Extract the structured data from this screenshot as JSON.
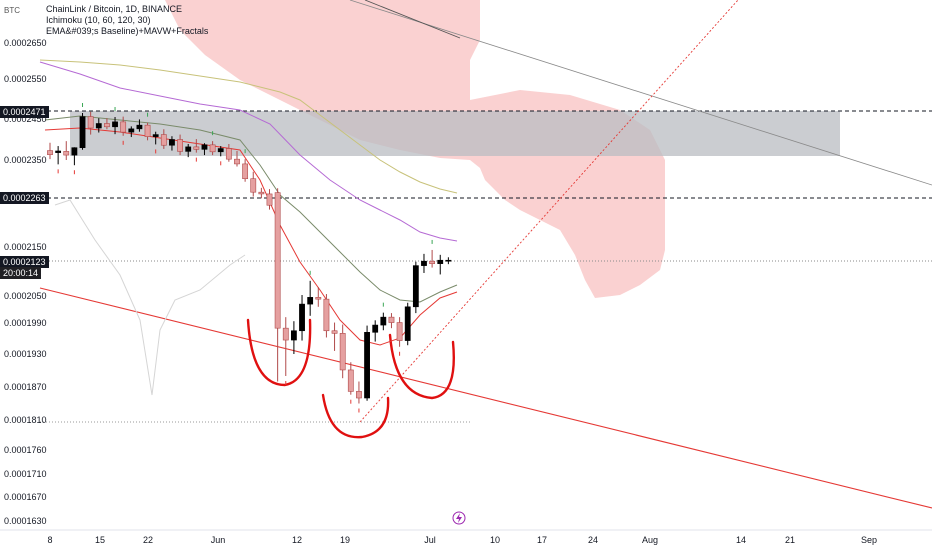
{
  "header": {
    "symbol_title": "ChainLink / Bitcoin, 1D, BINANCE",
    "indicator_1": "Ichimoku (10, 60, 120, 30)",
    "indicator_2": "EMA&#039;s Baseline)+MAVW+Fractals",
    "currency": "BTC"
  },
  "price_tags": {
    "upper": "0.0002471",
    "middle": "0.0002263",
    "current": "0.0002123",
    "countdown": "20:00:14"
  },
  "colors": {
    "bull": "#000000",
    "bear": "#e5a0a0",
    "cloud": "#f9c9c9",
    "box": "#b9bcc1",
    "red_line": "#e53935",
    "ema_purple": "#b56ad4",
    "ema_olive": "#c8c27a",
    "baseline_green": "#7a8b6a"
  },
  "chart_data": {
    "type": "candlestick",
    "y_ticks": [
      "0.0002650",
      "0.0002550",
      "0.0002450",
      "0.0002350",
      "0.0002150",
      "0.0002050",
      "0.0001990",
      "0.0001930",
      "0.0001870",
      "0.0001810",
      "0.0001760",
      "0.0001710",
      "0.0001670",
      "0.0001630"
    ],
    "x_ticks": [
      "8",
      "15",
      "22",
      "Jun",
      "12",
      "19",
      "Jul",
      "10",
      "17",
      "24",
      "Aug",
      "14",
      "21",
      "Sep"
    ],
    "ylim": [
      0.000162,
      0.00027
    ],
    "candles": [
      {
        "o": 0.0002373,
        "h": 0.0002392,
        "l": 0.0002352,
        "c": 0.0002363
      },
      {
        "o": 0.0002368,
        "h": 0.0002384,
        "l": 0.000234,
        "c": 0.0002372
      },
      {
        "o": 0.0002371,
        "h": 0.0002396,
        "l": 0.000235,
        "c": 0.0002362
      },
      {
        "o": 0.0002362,
        "h": 0.0002381,
        "l": 0.0002338,
        "c": 0.000238
      },
      {
        "o": 0.000238,
        "h": 0.0002465,
        "l": 0.0002375,
        "c": 0.0002456
      },
      {
        "o": 0.0002456,
        "h": 0.0002468,
        "l": 0.0002412,
        "c": 0.0002428
      },
      {
        "o": 0.0002428,
        "h": 0.0002452,
        "l": 0.0002417,
        "c": 0.0002439
      },
      {
        "o": 0.0002439,
        "h": 0.0002452,
        "l": 0.0002425,
        "c": 0.0002431
      },
      {
        "o": 0.0002431,
        "h": 0.0002455,
        "l": 0.0002413,
        "c": 0.0002443
      },
      {
        "o": 0.0002443,
        "h": 0.0002456,
        "l": 0.0002409,
        "c": 0.0002418
      },
      {
        "o": 0.0002418,
        "h": 0.0002432,
        "l": 0.0002406,
        "c": 0.0002426
      },
      {
        "o": 0.0002426,
        "h": 0.0002449,
        "l": 0.0002419,
        "c": 0.0002435
      },
      {
        "o": 0.0002435,
        "h": 0.0002441,
        "l": 0.0002398,
        "c": 0.0002407
      },
      {
        "o": 0.0002407,
        "h": 0.0002419,
        "l": 0.0002388,
        "c": 0.0002412
      },
      {
        "o": 0.0002412,
        "h": 0.0002425,
        "l": 0.0002377,
        "c": 0.0002386
      },
      {
        "o": 0.0002386,
        "h": 0.0002408,
        "l": 0.0002373,
        "c": 0.00024
      },
      {
        "o": 0.00024,
        "h": 0.0002412,
        "l": 0.0002362,
        "c": 0.0002371
      },
      {
        "o": 0.0002371,
        "h": 0.0002389,
        "l": 0.0002357,
        "c": 0.0002382
      },
      {
        "o": 0.0002382,
        "h": 0.0002401,
        "l": 0.0002368,
        "c": 0.0002376
      },
      {
        "o": 0.0002376,
        "h": 0.0002391,
        "l": 0.0002362,
        "c": 0.0002387
      },
      {
        "o": 0.0002387,
        "h": 0.0002396,
        "l": 0.0002362,
        "c": 0.000237
      },
      {
        "o": 0.000237,
        "h": 0.0002384,
        "l": 0.0002359,
        "c": 0.0002378
      },
      {
        "o": 0.0002378,
        "h": 0.0002389,
        "l": 0.0002346,
        "c": 0.0002352
      },
      {
        "o": 0.0002352,
        "h": 0.0002372,
        "l": 0.0002335,
        "c": 0.0002341
      },
      {
        "o": 0.0002341,
        "h": 0.0002352,
        "l": 0.00023,
        "c": 0.0002307
      },
      {
        "o": 0.0002307,
        "h": 0.0002323,
        "l": 0.0002266,
        "c": 0.0002276
      },
      {
        "o": 0.0002276,
        "h": 0.0002286,
        "l": 0.0002262,
        "c": 0.0002272
      },
      {
        "o": 0.0002272,
        "h": 0.0002283,
        "l": 0.0002236,
        "c": 0.0002246
      },
      {
        "o": 0.0002275,
        "h": 0.0002285,
        "l": 0.000188,
        "c": 0.000198
      },
      {
        "o": 0.000198,
        "h": 0.0002003,
        "l": 0.000189,
        "c": 0.0001957
      },
      {
        "o": 0.0001957,
        "h": 0.0001994,
        "l": 0.000193,
        "c": 0.0001975
      },
      {
        "o": 0.0001975,
        "h": 0.0002052,
        "l": 0.0001956,
        "c": 0.0002032
      },
      {
        "o": 0.0002032,
        "h": 0.0002081,
        "l": 0.0002006,
        "c": 0.0002047
      },
      {
        "o": 0.0002047,
        "h": 0.0002068,
        "l": 0.0002026,
        "c": 0.0002043
      },
      {
        "o": 0.0002043,
        "h": 0.0002054,
        "l": 0.0001962,
        "c": 0.0001975
      },
      {
        "o": 0.0001975,
        "h": 0.0001991,
        "l": 0.0001936,
        "c": 0.000197
      },
      {
        "o": 0.000197,
        "h": 0.0001987,
        "l": 0.0001886,
        "c": 0.0001901
      },
      {
        "o": 0.0001901,
        "h": 0.0001915,
        "l": 0.0001856,
        "c": 0.0001862
      },
      {
        "o": 0.0001862,
        "h": 0.000188,
        "l": 0.000184,
        "c": 0.000185
      },
      {
        "o": 0.000185,
        "h": 0.0001985,
        "l": 0.0001845,
        "c": 0.0001972
      },
      {
        "o": 0.0001972,
        "h": 0.0001996,
        "l": 0.0001954,
        "c": 0.0001986
      },
      {
        "o": 0.0001986,
        "h": 0.0002013,
        "l": 0.0001976,
        "c": 0.0002003
      },
      {
        "o": 0.0002003,
        "h": 0.0002012,
        "l": 0.000198,
        "c": 0.0001991
      },
      {
        "o": 0.0001991,
        "h": 0.0002003,
        "l": 0.0001944,
        "c": 0.0001956
      },
      {
        "o": 0.0001956,
        "h": 0.0002035,
        "l": 0.0001947,
        "c": 0.0002026
      },
      {
        "o": 0.0002026,
        "h": 0.000212,
        "l": 0.0002012,
        "c": 0.0002112
      },
      {
        "o": 0.0002112,
        "h": 0.0002136,
        "l": 0.0002097,
        "c": 0.0002121
      },
      {
        "o": 0.0002121,
        "h": 0.0002144,
        "l": 0.0002108,
        "c": 0.0002116
      },
      {
        "o": 0.0002116,
        "h": 0.0002134,
        "l": 0.0002094,
        "c": 0.0002123
      },
      {
        "o": 0.0002123,
        "h": 0.0002129,
        "l": 0.0002115,
        "c": 0.0002123
      }
    ]
  }
}
